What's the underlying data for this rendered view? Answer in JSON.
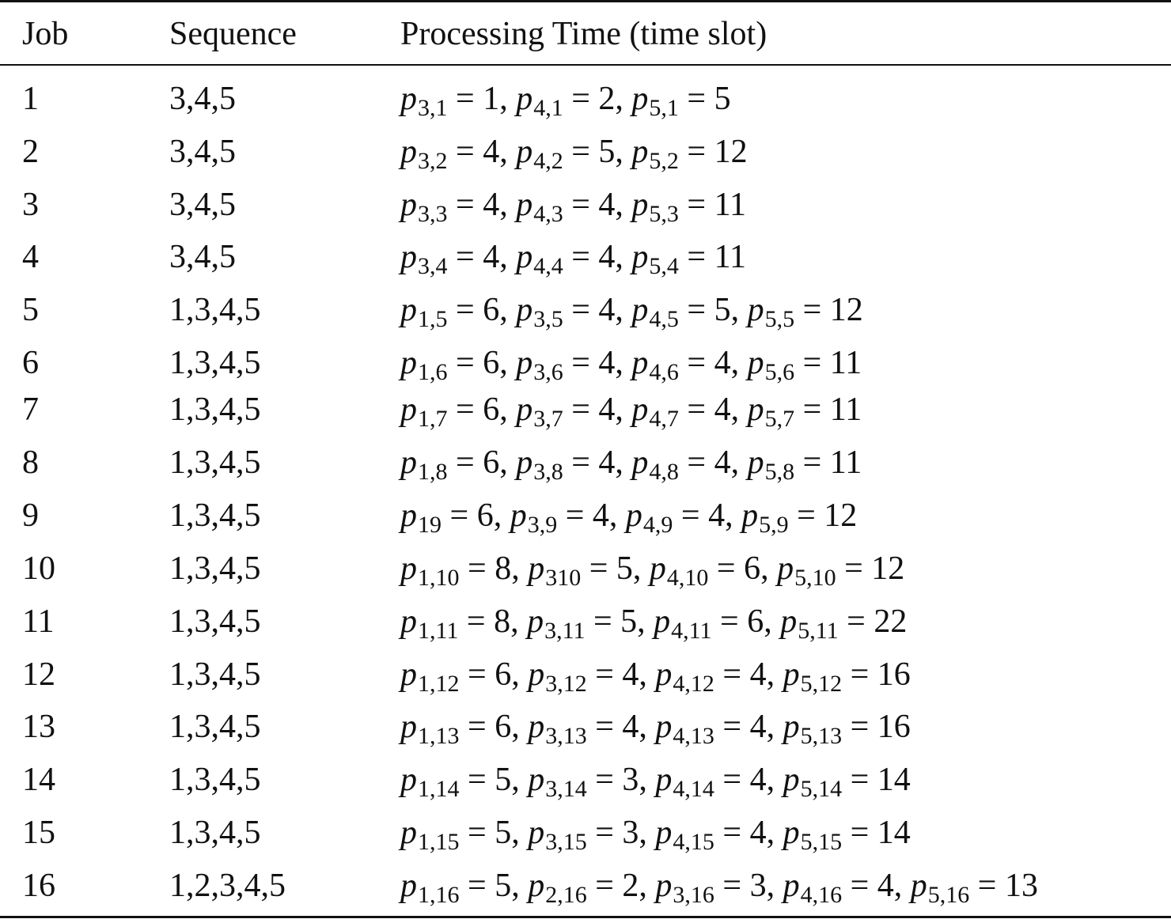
{
  "table": {
    "headers": {
      "job": "Job",
      "sequence": "Sequence",
      "time": "Processing Time (time slot)"
    },
    "rows": [
      {
        "job": "1",
        "sequence": "3,4,5",
        "times": [
          {
            "sub": "3,1",
            "val": "1"
          },
          {
            "sub": "4,1",
            "val": "2"
          },
          {
            "sub": "5,1",
            "val": "5"
          }
        ]
      },
      {
        "job": "2",
        "sequence": "3,4,5",
        "times": [
          {
            "sub": "3,2",
            "val": "4"
          },
          {
            "sub": "4,2",
            "val": "5"
          },
          {
            "sub": "5,2",
            "val": "12"
          }
        ]
      },
      {
        "job": "3",
        "sequence": "3,4,5",
        "times": [
          {
            "sub": "3,3",
            "val": "4"
          },
          {
            "sub": "4,3",
            "val": "4"
          },
          {
            "sub": "5,3",
            "val": "11"
          }
        ]
      },
      {
        "job": "4",
        "sequence": "3,4,5",
        "times": [
          {
            "sub": "3,4",
            "val": "4"
          },
          {
            "sub": "4,4",
            "val": "4"
          },
          {
            "sub": "5,4",
            "val": "11"
          }
        ]
      },
      {
        "job": "5",
        "sequence": "1,3,4,5",
        "times": [
          {
            "sub": "1,5",
            "val": "6"
          },
          {
            "sub": "3,5",
            "val": "4"
          },
          {
            "sub": "4,5",
            "val": "5"
          },
          {
            "sub": "5,5",
            "val": "12"
          }
        ]
      },
      {
        "job": "6",
        "sequence": "1,3,4,5",
        "times": [
          {
            "sub": "1,6",
            "val": "6"
          },
          {
            "sub": "3,6",
            "val": "4"
          },
          {
            "sub": "4,6",
            "val": "4"
          },
          {
            "sub": "5,6",
            "val": "11"
          }
        ]
      },
      {
        "job": "7",
        "sequence": "1,3,4,5",
        "times": [
          {
            "sub": "1,7",
            "val": "6"
          },
          {
            "sub": "3,7",
            "val": "4"
          },
          {
            "sub": "4,7",
            "val": "4"
          },
          {
            "sub": "5,7",
            "val": "11"
          }
        ]
      },
      {
        "job": "8",
        "sequence": "1,3,4,5",
        "times": [
          {
            "sub": "1,8",
            "val": "6"
          },
          {
            "sub": "3,8",
            "val": "4"
          },
          {
            "sub": "4,8",
            "val": "4"
          },
          {
            "sub": "5,8",
            "val": "11"
          }
        ]
      },
      {
        "job": "9",
        "sequence": "1,3,4,5",
        "times": [
          {
            "sub": "19",
            "val": "6"
          },
          {
            "sub": "3,9",
            "val": "4"
          },
          {
            "sub": "4,9",
            "val": "4"
          },
          {
            "sub": "5,9",
            "val": "12"
          }
        ]
      },
      {
        "job": "10",
        "sequence": "1,3,4,5",
        "times": [
          {
            "sub": "1,10",
            "val": "8"
          },
          {
            "sub": "310",
            "val": "5"
          },
          {
            "sub": "4,10",
            "val": "6"
          },
          {
            "sub": "5,10",
            "val": "12"
          }
        ]
      },
      {
        "job": "11",
        "sequence": "1,3,4,5",
        "times": [
          {
            "sub": "1,11",
            "val": "8"
          },
          {
            "sub": "3,11",
            "val": "5"
          },
          {
            "sub": "4,11",
            "val": "6"
          },
          {
            "sub": "5,11",
            "val": "22"
          }
        ]
      },
      {
        "job": "12",
        "sequence": "1,3,4,5",
        "times": [
          {
            "sub": "1,12",
            "val": "6"
          },
          {
            "sub": "3,12",
            "val": "4"
          },
          {
            "sub": "4,12",
            "val": "4"
          },
          {
            "sub": "5,12",
            "val": "16"
          }
        ]
      },
      {
        "job": "13",
        "sequence": "1,3,4,5",
        "times": [
          {
            "sub": "1,13",
            "val": "6"
          },
          {
            "sub": "3,13",
            "val": "4"
          },
          {
            "sub": "4,13",
            "val": "4"
          },
          {
            "sub": "5,13",
            "val": "16"
          }
        ]
      },
      {
        "job": "14",
        "sequence": "1,3,4,5",
        "times": [
          {
            "sub": "1,14",
            "val": "5"
          },
          {
            "sub": "3,14",
            "val": "3"
          },
          {
            "sub": "4,14",
            "val": "4"
          },
          {
            "sub": "5,14",
            "val": "14"
          }
        ]
      },
      {
        "job": "15",
        "sequence": "1,3,4,5",
        "times": [
          {
            "sub": "1,15",
            "val": "5"
          },
          {
            "sub": "3,15",
            "val": "3"
          },
          {
            "sub": "4,15",
            "val": "4"
          },
          {
            "sub": "5,15",
            "val": "14"
          }
        ]
      },
      {
        "job": "16",
        "sequence": "1,2,3,4,5",
        "times": [
          {
            "sub": "1,16",
            "val": "5"
          },
          {
            "sub": "2,16",
            "val": "2"
          },
          {
            "sub": "3,16",
            "val": "3"
          },
          {
            "sub": "4,16",
            "val": "4"
          },
          {
            "sub": "5,16",
            "val": "13"
          }
        ]
      }
    ]
  }
}
